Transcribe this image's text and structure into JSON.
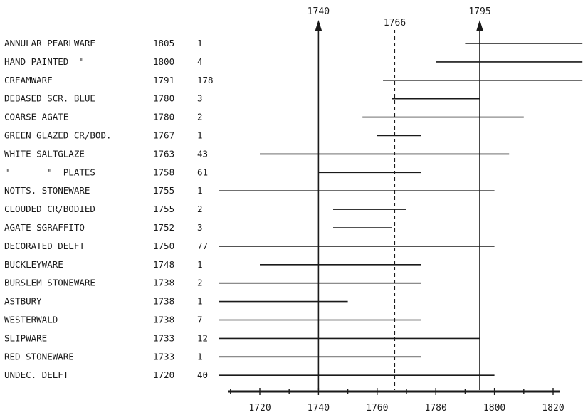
{
  "chart_data": {
    "type": "range",
    "title": "",
    "xlabel": "",
    "ylabel": "",
    "xlim": [
      1708,
      1822
    ],
    "xticks": [
      "1720",
      "1740",
      "1760",
      "1780",
      "1800",
      "1820"
    ],
    "reference_lines": [
      {
        "label": "1740",
        "x": 1740,
        "style": "arrow"
      },
      {
        "label": "1766",
        "x": 1766,
        "style": "dashed"
      },
      {
        "label": "1795",
        "x": 1795,
        "style": "arrow"
      }
    ],
    "rows": [
      {
        "ware": "ANNULAR PEARLWARE",
        "date": "1805",
        "count": "1",
        "start": 1790,
        "end": 1830
      },
      {
        "ware": "HAND PAINTED  \"",
        "date": "1800",
        "count": "4",
        "start": 1780,
        "end": 1830
      },
      {
        "ware": "CREAMWARE",
        "date": "1791",
        "count": "178",
        "start": 1762,
        "end": 1830
      },
      {
        "ware": "DEBASED SCR. BLUE",
        "date": "1780",
        "count": "3",
        "start": 1765,
        "end": 1795
      },
      {
        "ware": "COARSE AGATE",
        "date": "1780",
        "count": "2",
        "start": 1755,
        "end": 1810
      },
      {
        "ware": "GREEN GLAZED CR/BOD.",
        "date": "1767",
        "count": "1",
        "start": 1760,
        "end": 1775
      },
      {
        "ware": "WHITE SALTGLAZE",
        "date": "1763",
        "count": "43",
        "start": 1720,
        "end": 1805
      },
      {
        "ware": "\"       \"  PLATES",
        "date": "1758",
        "count": "61",
        "start": 1740,
        "end": 1775
      },
      {
        "ware": "NOTTS. STONEWARE",
        "date": "1755",
        "count": "1",
        "start": 1700,
        "end": 1800
      },
      {
        "ware": "CLOUDED CR/BODIED",
        "date": "1755",
        "count": "2",
        "start": 1745,
        "end": 1770
      },
      {
        "ware": "AGATE SGRAFFITO",
        "date": "1752",
        "count": "3",
        "start": 1745,
        "end": 1765
      },
      {
        "ware": "DECORATED DELFT",
        "date": "1750",
        "count": "77",
        "start": 1700,
        "end": 1800
      },
      {
        "ware": "BUCKLEYWARE",
        "date": "1748",
        "count": "1",
        "start": 1720,
        "end": 1775
      },
      {
        "ware": "BURSLEM STONEWARE",
        "date": "1738",
        "count": "2",
        "start": 1700,
        "end": 1775
      },
      {
        "ware": "ASTBURY",
        "date": "1738",
        "count": "1",
        "start": 1700,
        "end": 1750
      },
      {
        "ware": "WESTERWALD",
        "date": "1738",
        "count": "7",
        "start": 1700,
        "end": 1775
      },
      {
        "ware": "SLIPWARE",
        "date": "1733",
        "count": "12",
        "start": 1700,
        "end": 1795
      },
      {
        "ware": "RED STONEWARE",
        "date": "1733",
        "count": "1",
        "start": 1700,
        "end": 1775
      },
      {
        "ware": "UNDEC. DELFT",
        "date": "1720",
        "count": "40",
        "start": 1700,
        "end": 1800
      }
    ]
  }
}
